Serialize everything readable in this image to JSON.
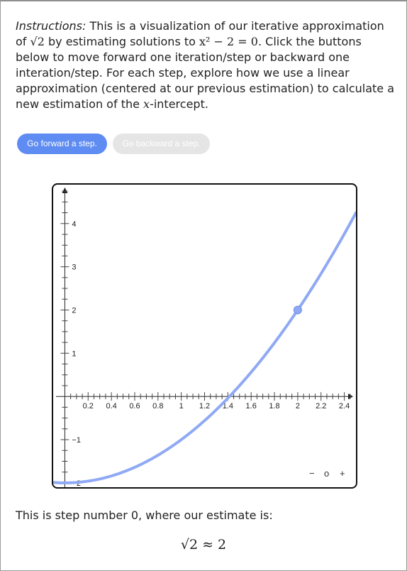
{
  "instructions": {
    "lead": "Instructions:",
    "text_1": " This is a visualization of our iterative approximation of ",
    "sqrt2": "√2",
    "text_2": " by estimating solutions to ",
    "equation": "x² − 2 = 0",
    "text_3": ". Click the buttons below to move forward one iteration/step or backward one interation/step. For each step, explore how we use a linear approximation (centered at our previous estimation) to calculate a new estimation of the ",
    "xvar": "x",
    "text_4": "-intercept."
  },
  "buttons": {
    "forward_label": "Go forward a step.",
    "backward_label": "Go backward a step."
  },
  "zoom": {
    "minus": "−",
    "reset": "o",
    "plus": "+"
  },
  "status": {
    "step_text": "This is step number 0, where our estimate is:",
    "estimate_formula": "√2 ≈ 2"
  },
  "colors": {
    "accent": "#5e8cf2",
    "curve": "#8fa9f4",
    "disabled": "#e5e5e5"
  },
  "chart_data": {
    "type": "line",
    "function": "x^2 - 2",
    "xlim": [
      -0.1,
      2.5
    ],
    "ylim": [
      -2.1,
      4.9
    ],
    "x_ticks": [
      0.2,
      0.4,
      0.6,
      0.8,
      1,
      1.2,
      1.4,
      1.6,
      1.8,
      2,
      2.2,
      2.4
    ],
    "x_tick_labels": [
      "0.2",
      "0.4",
      "0.6",
      "0.8",
      "1",
      "1.2",
      "1.4",
      "1.6",
      "1.8",
      "2",
      "2.2",
      "2.4"
    ],
    "y_ticks": [
      -2,
      -1,
      1,
      2,
      3,
      4
    ],
    "y_tick_labels": [
      "−2",
      "−1",
      "1",
      "2",
      "3",
      "4"
    ],
    "series": [
      {
        "x": [
          -0.1,
          0,
          0.2,
          0.4,
          0.6,
          0.8,
          1,
          1.2,
          1.4,
          1.6,
          1.8,
          2,
          2.2,
          2.4,
          2.5
        ],
        "y": [
          -1.99,
          -2,
          -1.96,
          -1.84,
          -1.64,
          -1.36,
          -1,
          -0.56,
          -0.04,
          0.56,
          1.24,
          2,
          2.84,
          3.76,
          4.25
        ]
      }
    ],
    "points": [
      {
        "x": 2,
        "y": 2
      }
    ],
    "xlabel": "",
    "ylabel": "",
    "grid": false
  }
}
